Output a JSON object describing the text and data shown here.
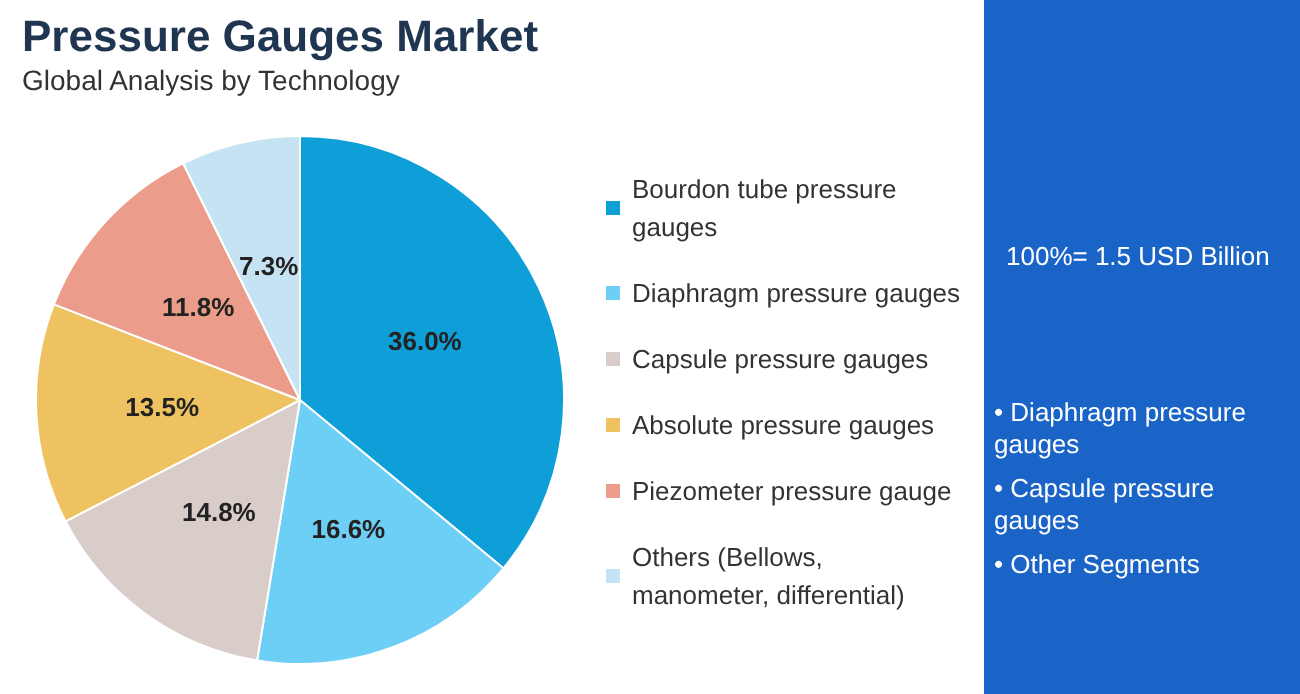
{
  "chart_data": {
    "type": "pie",
    "title": "Pressure Gauges Market",
    "subtitle": "Global Analysis by Technology",
    "categories": [
      "Bourdon tube pressure gauges",
      "Diaphragm pressure gauges",
      "Capsule pressure gauges",
      "Absolute pressure gauges",
      "Piezometer pressure gauge",
      "Others (Bellows, manometer, differential)"
    ],
    "values": [
      36.0,
      16.6,
      14.8,
      13.5,
      11.8,
      7.3
    ],
    "value_labels": [
      "36.0%",
      "16.6%",
      "14.8%",
      "13.5%",
      "11.8%",
      "7.3%"
    ],
    "colors": [
      "#0e9fd8",
      "#6dcff5",
      "#d9cdc9",
      "#efc261",
      "#ec9c8a",
      "#c5e3f3"
    ],
    "legend": "right",
    "annotations": [
      "100%= 1.5 USD Billion",
      "• Diaphragm pressure gauges",
      "• Capsule pressure gauges",
      "• Other Segments"
    ]
  }
}
